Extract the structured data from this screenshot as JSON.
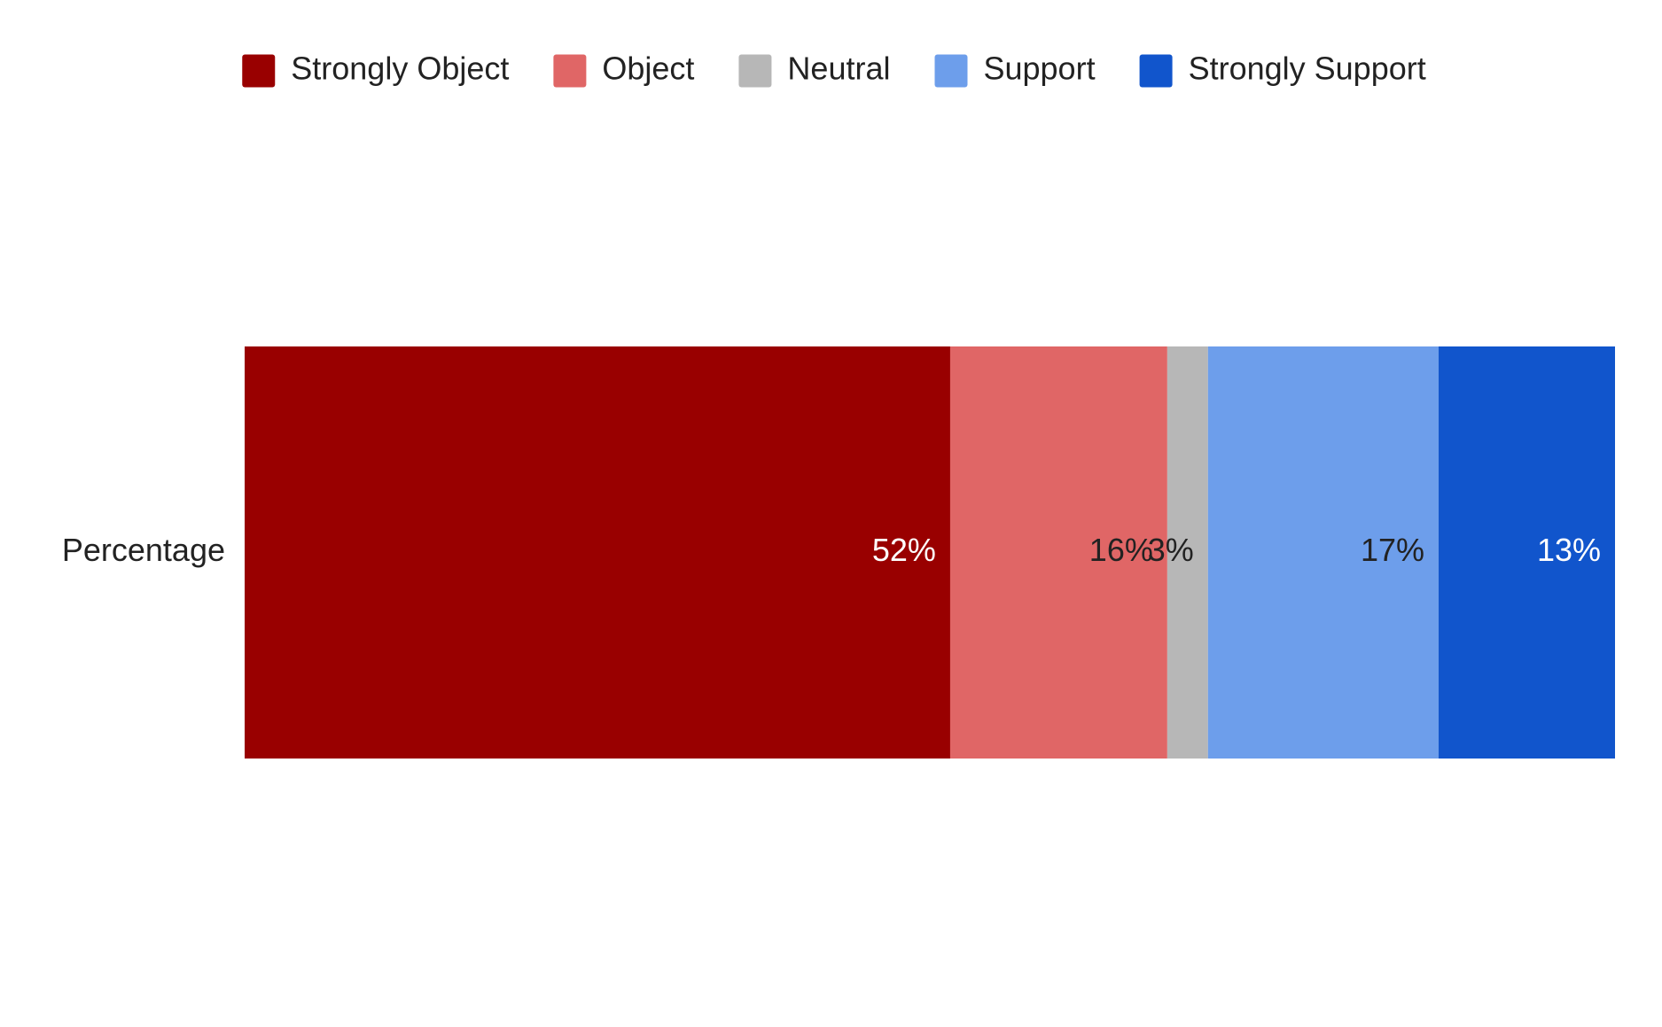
{
  "chart_data": {
    "type": "stacked-bar-horizontal",
    "categories": [
      "Percentage"
    ],
    "series": [
      {
        "name": "Strongly Object",
        "color": "#990000",
        "values": [
          52
        ],
        "value_labels": [
          "52%"
        ]
      },
      {
        "name": "Object",
        "color": "#e06666",
        "values": [
          16
        ],
        "value_labels": [
          "16%"
        ]
      },
      {
        "name": "Neutral",
        "color": "#b7b7b7",
        "values": [
          3
        ],
        "value_labels": [
          "3%"
        ]
      },
      {
        "name": "Support",
        "color": "#6d9eeb",
        "values": [
          17
        ],
        "value_labels": [
          "17%"
        ]
      },
      {
        "name": "Strongly Support",
        "color": "#1155cc",
        "values": [
          13
        ],
        "value_labels": [
          "13%"
        ]
      }
    ],
    "legend": "top"
  }
}
